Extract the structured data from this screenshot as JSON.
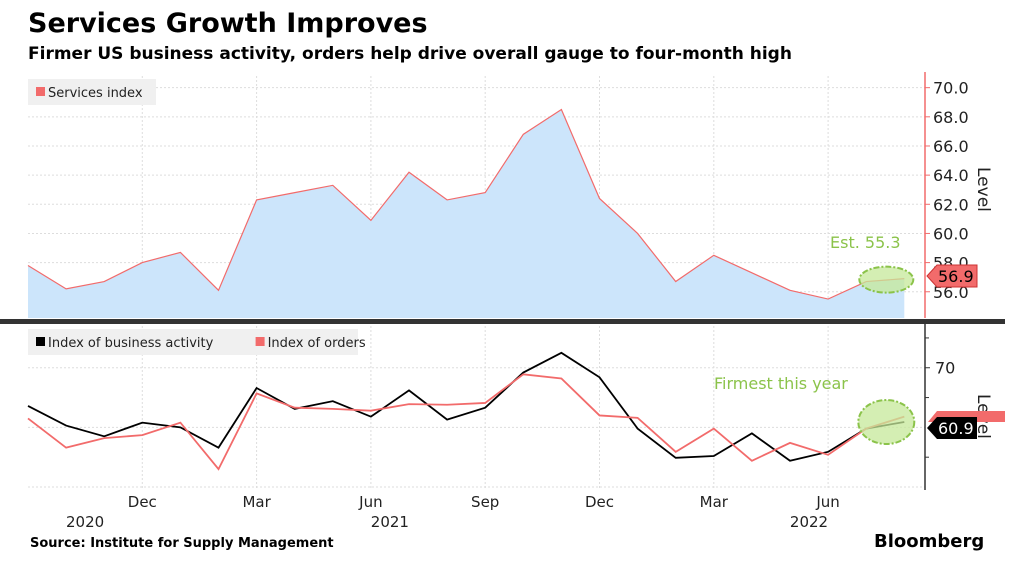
{
  "title": "Services Growth Improves",
  "subtitle": "Firmer US business activity, orders help drive overall gauge to four-month high",
  "source": "Source: Institute for Supply Management",
  "brand": "Bloomberg",
  "chart_data": [
    {
      "type": "area",
      "x": [
        "2020-09",
        "2020-10",
        "2020-11",
        "2020-12",
        "2021-01",
        "2021-02",
        "2021-03",
        "2021-04",
        "2021-05",
        "2021-06",
        "2021-07",
        "2021-08",
        "2021-09",
        "2021-10",
        "2021-11",
        "2021-12",
        "2022-01",
        "2022-02",
        "2022-03",
        "2022-04",
        "2022-05",
        "2022-06",
        "2022-07",
        "2022-08"
      ],
      "series": [
        {
          "name": "Services index",
          "color": "#f26b6b",
          "fill": "#cce5fb",
          "values": [
            57.8,
            56.2,
            56.7,
            58.0,
            58.7,
            56.1,
            62.3,
            62.8,
            63.3,
            60.9,
            64.2,
            62.3,
            62.8,
            66.8,
            68.5,
            62.4,
            60.0,
            56.7,
            58.5,
            57.3,
            56.1,
            55.5,
            56.7,
            56.9
          ]
        }
      ],
      "ylabel": "Level",
      "yticks": [
        "56.0",
        "58.0",
        "60.0",
        "62.0",
        "64.0",
        "66.0",
        "68.0",
        "70.0"
      ],
      "ylim": [
        54.2,
        70.8
      ],
      "last_value_label": "56.9",
      "annotation": "Est. 55.3",
      "legend_placement": "top-left",
      "grid": true
    },
    {
      "type": "line",
      "x": [
        "2020-09",
        "2020-10",
        "2020-11",
        "2020-12",
        "2021-01",
        "2021-02",
        "2021-03",
        "2021-04",
        "2021-05",
        "2021-06",
        "2021-07",
        "2021-08",
        "2021-09",
        "2021-10",
        "2021-11",
        "2021-12",
        "2022-01",
        "2022-02",
        "2022-03",
        "2022-04",
        "2022-05",
        "2022-06",
        "2022-07",
        "2022-08"
      ],
      "series": [
        {
          "name": "Index of business activity",
          "color": "#000000",
          "values": [
            63.6,
            60.3,
            58.5,
            60.8,
            60.0,
            56.6,
            66.6,
            63.1,
            64.4,
            61.8,
            66.2,
            61.3,
            63.3,
            69.2,
            72.5,
            68.4,
            59.8,
            54.9,
            55.2,
            59.0,
            54.4,
            55.9,
            59.8,
            60.9
          ]
        },
        {
          "name": "Index of orders",
          "color": "#f26b6b",
          "values": [
            61.5,
            56.6,
            58.2,
            58.7,
            60.8,
            53.0,
            65.7,
            63.3,
            63.1,
            62.8,
            63.9,
            63.8,
            64.1,
            68.9,
            68.2,
            62.0,
            61.6,
            55.9,
            59.8,
            54.4,
            57.4,
            55.4,
            59.8,
            61.8
          ]
        }
      ],
      "ylabel": "Level",
      "yticks": [
        "70"
      ],
      "ylim": [
        49.5,
        77
      ],
      "last_value_label": "60.9",
      "annotation": "Firmest this year",
      "legend_placement": "top-left",
      "grid": true
    }
  ],
  "x_axis": {
    "month_ticks": [
      {
        "label": "Dec",
        "x": "2020-12"
      },
      {
        "label": "Mar",
        "x": "2021-03"
      },
      {
        "label": "Jun",
        "x": "2021-06"
      },
      {
        "label": "Sep",
        "x": "2021-09"
      },
      {
        "label": "Dec",
        "x": "2021-12"
      },
      {
        "label": "Mar",
        "x": "2022-03"
      },
      {
        "label": "Jun",
        "x": "2022-06"
      }
    ],
    "year_labels": [
      {
        "label": "2020",
        "x": "2020-10"
      },
      {
        "label": "2021",
        "x": "2021-06"
      },
      {
        "label": "2022",
        "x": "2022-05"
      }
    ]
  },
  "colors": {
    "annotation": "#8bc34a",
    "annotation_fill": "#c5e89a",
    "panel_divider": "#333333"
  }
}
